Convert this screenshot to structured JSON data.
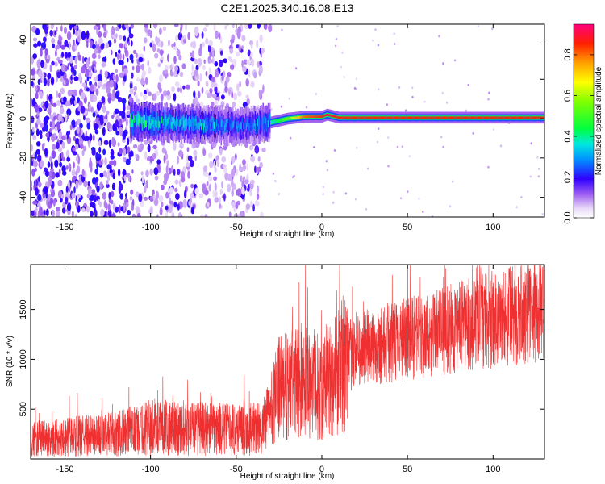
{
  "title": "C2E1.2025.340.16.08.E13",
  "colors": {
    "line": "#f03030",
    "frame": "#000000",
    "background": "#ffffff"
  },
  "chart_data": [
    {
      "type": "heatmap",
      "name": "spectrogram",
      "xlabel": "Height of straight line (km)",
      "ylabel": "Frequency (Hz)",
      "xlim": [
        -170,
        130
      ],
      "ylim": [
        -50,
        48
      ],
      "xticks": [
        -150,
        -100,
        -50,
        0,
        50,
        100
      ],
      "yticks": [
        -40,
        -20,
        0,
        20,
        40
      ],
      "colorbar": {
        "label": "Normalized spectral amplitude",
        "range": [
          0,
          0.95
        ],
        "ticks": [
          0.0,
          0.2,
          0.4,
          0.6,
          0.8
        ],
        "tick_labels": [
          "0.0",
          "0.2",
          "0.4",
          "0.6",
          "0.8"
        ]
      },
      "center_track": {
        "description_points_km": [
          -110,
          -90,
          -70,
          -50,
          -40,
          -30,
          -20,
          -10,
          0,
          3,
          10,
          50,
          100,
          130
        ],
        "frequency_hz": [
          -1,
          -2,
          -3,
          -4,
          -3,
          -2,
          0,
          1,
          1,
          2,
          0.5,
          0.5,
          0.5,
          0.5
        ],
        "peak_amplitude": [
          0.45,
          0.4,
          0.35,
          0.3,
          0.3,
          0.35,
          0.6,
          0.85,
          0.9,
          0.95,
          0.9,
          0.9,
          0.9,
          0.9
        ]
      }
    },
    {
      "type": "line",
      "name": "snr",
      "xlabel": "Height of straight line (km)",
      "ylabel": "SNR (10 * v/v)",
      "xlim": [
        -170,
        130
      ],
      "ylim": [
        0,
        1950
      ],
      "xticks": [
        -150,
        -100,
        -50,
        0,
        50,
        100
      ],
      "yticks": [
        500,
        1000,
        1500
      ],
      "trend_km": [
        -170,
        -120,
        -100,
        -60,
        -35,
        -25,
        -10,
        0,
        10,
        20,
        50,
        100,
        130
      ],
      "trend_snr": [
        200,
        250,
        320,
        300,
        300,
        700,
        800,
        700,
        900,
        1100,
        1200,
        1400,
        1500
      ]
    }
  ]
}
